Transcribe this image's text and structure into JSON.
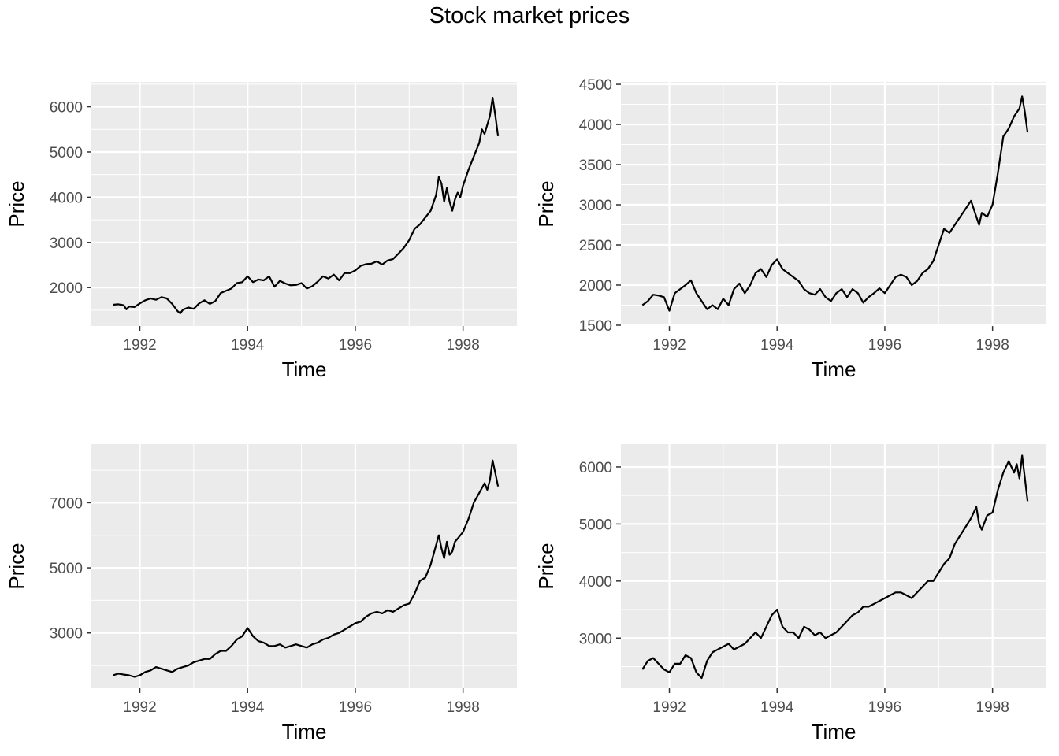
{
  "figure": {
    "title": "Stock market prices"
  },
  "chart_data": [
    {
      "type": "line",
      "title": "",
      "xlabel": "Time",
      "ylabel": "Price",
      "xlim": [
        1991.1,
        1999.0
      ],
      "ylim": [
        1150,
        6550
      ],
      "x_ticks": [
        1992,
        1994,
        1996,
        1998
      ],
      "x_tick_labels": [
        "1992",
        "1994",
        "1996",
        "1998"
      ],
      "y_ticks": [
        2000,
        3000,
        4000,
        5000,
        6000
      ],
      "y_tick_labels": [
        "2000",
        "3000",
        "4000",
        "5000",
        "6000"
      ],
      "grid": true,
      "series": [
        {
          "x": [
            1991.5,
            1991.6,
            1991.7,
            1991.75,
            1991.8,
            1991.9,
            1992.0,
            1992.1,
            1992.2,
            1992.3,
            1992.4,
            1992.5,
            1992.6,
            1992.7,
            1992.75,
            1992.8,
            1992.9,
            1993.0,
            1993.1,
            1993.2,
            1993.3,
            1993.4,
            1993.5,
            1993.6,
            1993.7,
            1993.8,
            1993.9,
            1994.0,
            1994.1,
            1994.2,
            1994.3,
            1994.4,
            1994.5,
            1994.6,
            1994.7,
            1994.8,
            1994.9,
            1995.0,
            1995.1,
            1995.2,
            1995.3,
            1995.4,
            1995.5,
            1995.6,
            1995.7,
            1995.8,
            1995.9,
            1996.0,
            1996.1,
            1996.2,
            1996.3,
            1996.4,
            1996.5,
            1996.6,
            1996.7,
            1996.8,
            1996.9,
            1997.0,
            1997.1,
            1997.2,
            1997.3,
            1997.4,
            1997.5,
            1997.55,
            1997.6,
            1997.65,
            1997.7,
            1997.75,
            1997.8,
            1997.85,
            1997.9,
            1997.95,
            1998.0,
            1998.1,
            1998.2,
            1998.3,
            1998.35,
            1998.4,
            1998.45,
            1998.5,
            1998.55,
            1998.6,
            1998.65
          ],
          "y": [
            1620,
            1630,
            1610,
            1520,
            1580,
            1570,
            1650,
            1720,
            1760,
            1730,
            1790,
            1760,
            1640,
            1480,
            1430,
            1510,
            1560,
            1530,
            1650,
            1720,
            1640,
            1700,
            1880,
            1930,
            1980,
            2100,
            2120,
            2250,
            2120,
            2180,
            2160,
            2250,
            2020,
            2150,
            2090,
            2050,
            2060,
            2100,
            1980,
            2030,
            2130,
            2250,
            2200,
            2290,
            2160,
            2320,
            2320,
            2380,
            2480,
            2520,
            2530,
            2580,
            2510,
            2600,
            2630,
            2750,
            2880,
            3050,
            3300,
            3400,
            3550,
            3700,
            4050,
            4450,
            4300,
            3900,
            4200,
            3900,
            3700,
            3950,
            4100,
            4000,
            4250,
            4600,
            4900,
            5200,
            5500,
            5400,
            5600,
            5800,
            6200,
            5800,
            5350
          ]
        }
      ]
    },
    {
      "type": "line",
      "title": "",
      "xlabel": "Time",
      "ylabel": "Price",
      "xlim": [
        1991.1,
        1999.0
      ],
      "ylim": [
        1490,
        4530
      ],
      "x_ticks": [
        1992,
        1994,
        1996,
        1998
      ],
      "x_tick_labels": [
        "1992",
        "1994",
        "1996",
        "1998"
      ],
      "y_ticks": [
        1500,
        2000,
        2500,
        3000,
        3500,
        4000,
        4500
      ],
      "y_tick_labels": [
        "1500",
        "2000",
        "2500",
        "3000",
        "3500",
        "4000",
        "4500"
      ],
      "grid": true,
      "series": [
        {
          "x": [
            1991.5,
            1991.6,
            1991.7,
            1991.8,
            1991.9,
            1992.0,
            1992.1,
            1992.2,
            1992.3,
            1992.4,
            1992.5,
            1992.6,
            1992.7,
            1992.8,
            1992.9,
            1993.0,
            1993.1,
            1993.2,
            1993.3,
            1993.4,
            1993.5,
            1993.6,
            1993.7,
            1993.8,
            1993.9,
            1994.0,
            1994.1,
            1994.2,
            1994.3,
            1994.4,
            1994.5,
            1994.6,
            1994.7,
            1994.8,
            1994.9,
            1995.0,
            1995.1,
            1995.2,
            1995.3,
            1995.4,
            1995.5,
            1995.6,
            1995.7,
            1995.8,
            1995.9,
            1996.0,
            1996.1,
            1996.2,
            1996.3,
            1996.4,
            1996.5,
            1996.6,
            1996.7,
            1996.8,
            1996.9,
            1997.0,
            1997.1,
            1997.2,
            1997.3,
            1997.4,
            1997.5,
            1997.6,
            1997.7,
            1997.75,
            1997.8,
            1997.9,
            1998.0,
            1998.1,
            1998.2,
            1998.3,
            1998.4,
            1998.5,
            1998.55,
            1998.6,
            1998.65
          ],
          "y": [
            1750,
            1800,
            1880,
            1870,
            1850,
            1680,
            1900,
            1950,
            2000,
            2060,
            1900,
            1800,
            1700,
            1750,
            1700,
            1830,
            1750,
            1950,
            2020,
            1900,
            2000,
            2150,
            2200,
            2100,
            2250,
            2320,
            2200,
            2150,
            2100,
            2050,
            1950,
            1900,
            1880,
            1950,
            1850,
            1800,
            1900,
            1950,
            1850,
            1950,
            1900,
            1780,
            1850,
            1900,
            1960,
            1900,
            2000,
            2100,
            2130,
            2100,
            2000,
            2050,
            2150,
            2200,
            2300,
            2500,
            2700,
            2650,
            2750,
            2850,
            2950,
            3050,
            2850,
            2750,
            2900,
            2850,
            3000,
            3400,
            3850,
            3950,
            4100,
            4200,
            4350,
            4150,
            3900
          ]
        }
      ]
    },
    {
      "type": "line",
      "title": "",
      "xlabel": "Time",
      "ylabel": "Price",
      "xlim": [
        1991.1,
        1999.0
      ],
      "ylim": [
        1300,
        8800
      ],
      "x_ticks": [
        1992,
        1994,
        1996,
        1998
      ],
      "x_tick_labels": [
        "1992",
        "1994",
        "1996",
        "1998"
      ],
      "y_ticks": [
        3000,
        5000,
        7000
      ],
      "y_tick_labels": [
        "3000",
        "5000",
        "7000"
      ],
      "grid": true,
      "series": [
        {
          "x": [
            1991.5,
            1991.6,
            1991.7,
            1991.8,
            1991.9,
            1992.0,
            1992.1,
            1992.2,
            1992.3,
            1992.4,
            1992.5,
            1992.6,
            1992.7,
            1992.8,
            1992.9,
            1993.0,
            1993.1,
            1993.2,
            1993.3,
            1993.4,
            1993.5,
            1993.6,
            1993.7,
            1993.8,
            1993.9,
            1994.0,
            1994.1,
            1994.2,
            1994.3,
            1994.4,
            1994.5,
            1994.6,
            1994.7,
            1994.8,
            1994.9,
            1995.0,
            1995.1,
            1995.2,
            1995.3,
            1995.4,
            1995.5,
            1995.6,
            1995.7,
            1995.8,
            1995.9,
            1996.0,
            1996.1,
            1996.2,
            1996.3,
            1996.4,
            1996.5,
            1996.6,
            1996.7,
            1996.8,
            1996.9,
            1997.0,
            1997.1,
            1997.2,
            1997.3,
            1997.4,
            1997.5,
            1997.55,
            1997.6,
            1997.65,
            1997.7,
            1997.75,
            1997.8,
            1997.85,
            1997.9,
            1998.0,
            1998.1,
            1998.2,
            1998.3,
            1998.4,
            1998.45,
            1998.5,
            1998.55,
            1998.6,
            1998.65
          ],
          "y": [
            1700,
            1750,
            1720,
            1700,
            1650,
            1700,
            1800,
            1850,
            1950,
            1900,
            1850,
            1800,
            1900,
            1950,
            2000,
            2100,
            2150,
            2200,
            2200,
            2350,
            2450,
            2450,
            2600,
            2800,
            2900,
            3150,
            2900,
            2750,
            2700,
            2600,
            2600,
            2650,
            2550,
            2600,
            2650,
            2600,
            2550,
            2650,
            2700,
            2800,
            2850,
            2950,
            3000,
            3100,
            3200,
            3300,
            3350,
            3500,
            3600,
            3650,
            3600,
            3700,
            3650,
            3750,
            3850,
            3900,
            4200,
            4600,
            4700,
            5100,
            5700,
            6000,
            5600,
            5300,
            5800,
            5400,
            5500,
            5800,
            5900,
            6100,
            6500,
            7000,
            7300,
            7600,
            7400,
            7700,
            8300,
            7900,
            7500
          ]
        }
      ]
    },
    {
      "type": "line",
      "title": "",
      "xlabel": "Time",
      "ylabel": "Price",
      "xlim": [
        1991.1,
        1999.0
      ],
      "ylim": [
        2120,
        6400
      ],
      "x_ticks": [
        1992,
        1994,
        1996,
        1998
      ],
      "x_tick_labels": [
        "1992",
        "1994",
        "1996",
        "1998"
      ],
      "y_ticks": [
        3000,
        4000,
        5000,
        6000
      ],
      "y_tick_labels": [
        "3000",
        "4000",
        "5000",
        "6000"
      ],
      "grid": true,
      "series": [
        {
          "x": [
            1991.5,
            1991.6,
            1991.7,
            1991.8,
            1991.9,
            1992.0,
            1992.1,
            1992.2,
            1992.3,
            1992.4,
            1992.5,
            1992.6,
            1992.7,
            1992.8,
            1992.9,
            1993.0,
            1993.1,
            1993.2,
            1993.3,
            1993.4,
            1993.5,
            1993.6,
            1993.7,
            1993.8,
            1993.9,
            1994.0,
            1994.1,
            1994.2,
            1994.3,
            1994.4,
            1994.5,
            1994.6,
            1994.7,
            1994.8,
            1994.9,
            1995.0,
            1995.1,
            1995.2,
            1995.3,
            1995.4,
            1995.5,
            1995.6,
            1995.7,
            1995.8,
            1995.9,
            1996.0,
            1996.1,
            1996.2,
            1996.3,
            1996.4,
            1996.5,
            1996.6,
            1996.7,
            1996.8,
            1996.9,
            1997.0,
            1997.1,
            1997.2,
            1997.3,
            1997.4,
            1997.5,
            1997.6,
            1997.7,
            1997.75,
            1997.8,
            1997.9,
            1998.0,
            1998.1,
            1998.2,
            1998.3,
            1998.4,
            1998.45,
            1998.5,
            1998.55,
            1998.6,
            1998.65
          ],
          "y": [
            2450,
            2600,
            2650,
            2550,
            2450,
            2400,
            2550,
            2550,
            2700,
            2650,
            2400,
            2300,
            2600,
            2750,
            2800,
            2850,
            2900,
            2800,
            2850,
            2900,
            3000,
            3100,
            3000,
            3200,
            3400,
            3500,
            3200,
            3100,
            3100,
            3000,
            3200,
            3150,
            3050,
            3100,
            3000,
            3050,
            3100,
            3200,
            3300,
            3400,
            3450,
            3550,
            3550,
            3600,
            3650,
            3700,
            3750,
            3800,
            3800,
            3750,
            3700,
            3800,
            3900,
            4000,
            4000,
            4150,
            4300,
            4400,
            4650,
            4800,
            4950,
            5100,
            5300,
            5000,
            4900,
            5150,
            5200,
            5600,
            5900,
            6100,
            5900,
            6050,
            5800,
            6200,
            5800,
            5400
          ]
        }
      ]
    }
  ]
}
